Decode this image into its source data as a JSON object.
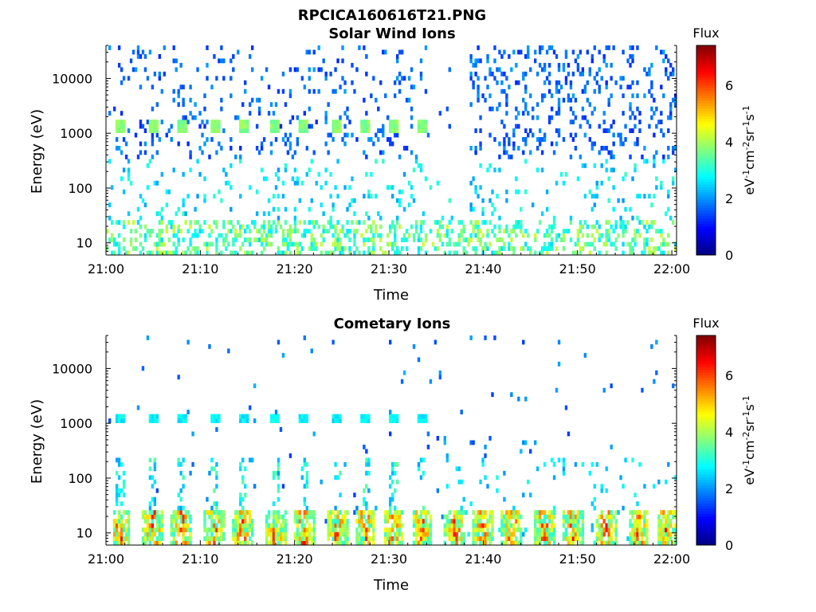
{
  "figure_title": "RPCICA160616T21.PNG",
  "colors": {
    "low_flux": "#0000ff",
    "mid_flux": "#00ffff",
    "high_flux": "#ff0000",
    "axis": "#000000",
    "background": "#ffffff"
  },
  "chart_data": [
    {
      "type": "heatmap",
      "title": "Solar Wind Ions",
      "xlabel": "Time",
      "ylabel": "Energy (eV)",
      "x_ticks": [
        "21:00",
        "21:10",
        "21:20",
        "21:30",
        "21:40",
        "21:50",
        "22:00"
      ],
      "x_range_minutes": [
        0,
        60.5
      ],
      "y_scale": "log",
      "y_ticks": [
        "10",
        "100",
        "1000",
        "10000"
      ],
      "y_range": [
        6,
        40000
      ],
      "colorbar": {
        "label": "Flux",
        "unit": "eV-1cm-2sr-1s-1",
        "ticks": [
          "0",
          "2",
          "4",
          "6"
        ],
        "range": [
          0,
          7.4
        ]
      },
      "pulse_times_minutes": [
        1.5,
        5,
        8,
        11.5,
        14.5,
        18,
        21,
        24.5,
        27.5,
        30.5,
        33.5,
        37,
        40,
        43,
        46.5,
        49.5,
        53,
        56.5,
        59.5
      ],
      "peak_energy_eV": 1300,
      "peak_flux": 3.5
    },
    {
      "type": "heatmap",
      "title": "Cometary Ions",
      "xlabel": "Time",
      "ylabel": "Energy (eV)",
      "x_ticks": [
        "21:00",
        "21:10",
        "21:20",
        "21:30",
        "21:40",
        "21:50",
        "22:00"
      ],
      "x_range_minutes": [
        0,
        60.5
      ],
      "y_scale": "log",
      "y_ticks": [
        "10",
        "100",
        "1000",
        "10000"
      ],
      "y_range": [
        6,
        40000
      ],
      "colorbar": {
        "label": "Flux",
        "unit": "eV-1cm-2sr-1s-1",
        "ticks": [
          "0",
          "2",
          "4",
          "6"
        ],
        "range": [
          0,
          7.4
        ]
      },
      "pulse_times_minutes": [
        1.5,
        5,
        8,
        11.5,
        14.5,
        18,
        21,
        24.5,
        27.5,
        30.5,
        33.5,
        37,
        40,
        43,
        46.5,
        49.5,
        53,
        56.5,
        59.5
      ],
      "peak_energy_eV": 16,
      "peak_flux": 6.8
    }
  ]
}
